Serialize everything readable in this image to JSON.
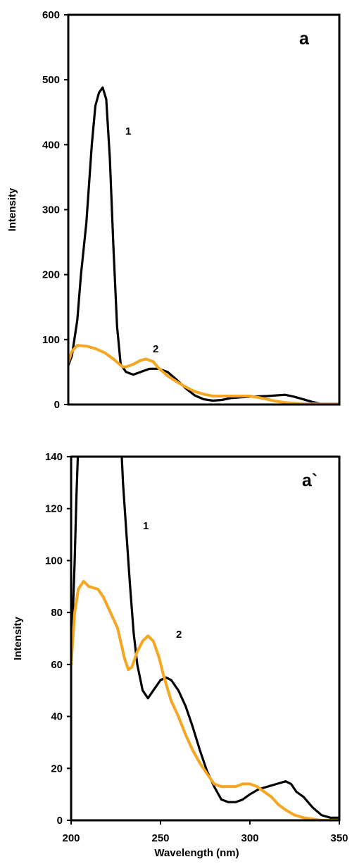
{
  "chart_data": [
    {
      "type": "line",
      "panel_label": "a",
      "ylabel": "Intensity",
      "xlabel": "",
      "xlim": [
        200,
        350
      ],
      "ylim": [
        0,
        600
      ],
      "yticks": [
        "0",
        "100",
        "200",
        "300",
        "400",
        "500",
        "600"
      ],
      "grid": false,
      "series": [
        {
          "name": "1",
          "color": "#000000",
          "points": [
            [
              200,
              60
            ],
            [
              202,
              75
            ],
            [
              205,
              130
            ],
            [
              207,
              200
            ],
            [
              210,
              280
            ],
            [
              213,
              400
            ],
            [
              215,
              460
            ],
            [
              217,
              480
            ],
            [
              219,
              488
            ],
            [
              221,
              470
            ],
            [
              223,
              380
            ],
            [
              225,
              240
            ],
            [
              227,
              120
            ],
            [
              229,
              62
            ],
            [
              232,
              50
            ],
            [
              236,
              46
            ],
            [
              240,
              50
            ],
            [
              245,
              55
            ],
            [
              250,
              55
            ],
            [
              255,
              50
            ],
            [
              260,
              38
            ],
            [
              265,
              25
            ],
            [
              270,
              14
            ],
            [
              275,
              8
            ],
            [
              280,
              6
            ],
            [
              285,
              7
            ],
            [
              290,
              10
            ],
            [
              300,
              12
            ],
            [
              310,
              13
            ],
            [
              320,
              15
            ],
            [
              325,
              12
            ],
            [
              330,
              8
            ],
            [
              335,
              4
            ],
            [
              340,
              1
            ],
            [
              350,
              1
            ]
          ]
        },
        {
          "name": "2",
          "color": "#f5a623",
          "points": [
            [
              200,
              65
            ],
            [
              202,
              82
            ],
            [
              205,
              91
            ],
            [
              210,
              90
            ],
            [
              215,
              86
            ],
            [
              220,
              80
            ],
            [
              225,
              70
            ],
            [
              230,
              58
            ],
            [
              232,
              58
            ],
            [
              236,
              62
            ],
            [
              240,
              68
            ],
            [
              243,
              70
            ],
            [
              247,
              66
            ],
            [
              250,
              56
            ],
            [
              255,
              44
            ],
            [
              260,
              35
            ],
            [
              265,
              27
            ],
            [
              270,
              20
            ],
            [
              275,
              16
            ],
            [
              280,
              13
            ],
            [
              285,
              13
            ],
            [
              290,
              13
            ],
            [
              295,
              13
            ],
            [
              300,
              13
            ],
            [
              305,
              11
            ],
            [
              310,
              8
            ],
            [
              315,
              5
            ],
            [
              320,
              3
            ],
            [
              330,
              1
            ],
            [
              340,
              1
            ],
            [
              350,
              1
            ]
          ]
        }
      ]
    },
    {
      "type": "line",
      "panel_label": "a`",
      "ylabel": "Intensity",
      "xlabel": "Wavelength (nm)",
      "xlim": [
        200,
        350
      ],
      "ylim": [
        0,
        140
      ],
      "xticks": [
        "200",
        "250",
        "300",
        "350"
      ],
      "yticks": [
        "0",
        "20",
        "40",
        "60",
        "80",
        "100",
        "120",
        "140"
      ],
      "grid": false,
      "series": [
        {
          "name": "1",
          "color": "#000000",
          "points": [
            [
              200,
              60
            ],
            [
              201,
              80
            ],
            [
              202,
              100
            ],
            [
              203,
              125
            ],
            [
              204,
              145
            ],
            [
              228,
              145
            ],
            [
              229,
              130
            ],
            [
              231,
              110
            ],
            [
              233,
              90
            ],
            [
              235,
              72
            ],
            [
              237,
              60
            ],
            [
              240,
              50
            ],
            [
              243,
              47
            ],
            [
              246,
              50
            ],
            [
              250,
              54
            ],
            [
              253,
              55
            ],
            [
              256,
              54
            ],
            [
              260,
              50
            ],
            [
              264,
              44
            ],
            [
              268,
              36
            ],
            [
              272,
              27
            ],
            [
              276,
              19
            ],
            [
              280,
              13
            ],
            [
              284,
              8
            ],
            [
              288,
              7
            ],
            [
              292,
              7
            ],
            [
              296,
              8
            ],
            [
              300,
              10
            ],
            [
              305,
              12
            ],
            [
              310,
              13
            ],
            [
              315,
              14
            ],
            [
              320,
              15
            ],
            [
              323,
              14
            ],
            [
              326,
              11
            ],
            [
              330,
              9
            ],
            [
              335,
              5
            ],
            [
              340,
              2
            ],
            [
              345,
              1
            ],
            [
              350,
              1
            ]
          ]
        },
        {
          "name": "2",
          "color": "#f5a623",
          "points": [
            [
              200,
              60
            ],
            [
              202,
              80
            ],
            [
              204,
              89
            ],
            [
              207,
              92
            ],
            [
              210,
              90
            ],
            [
              215,
              89
            ],
            [
              218,
              86
            ],
            [
              222,
              80
            ],
            [
              226,
              74
            ],
            [
              230,
              62
            ],
            [
              232,
              58
            ],
            [
              234,
              59
            ],
            [
              237,
              65
            ],
            [
              240,
              69
            ],
            [
              243,
              71
            ],
            [
              246,
              69
            ],
            [
              249,
              63
            ],
            [
              252,
              55
            ],
            [
              256,
              46
            ],
            [
              260,
              40
            ],
            [
              264,
              33
            ],
            [
              268,
              27
            ],
            [
              272,
              22
            ],
            [
              276,
              18
            ],
            [
              280,
              14
            ],
            [
              284,
              13
            ],
            [
              288,
              13
            ],
            [
              292,
              13
            ],
            [
              296,
              14
            ],
            [
              300,
              14
            ],
            [
              304,
              13
            ],
            [
              308,
              11
            ],
            [
              312,
              9
            ],
            [
              316,
              6
            ],
            [
              320,
              4
            ],
            [
              325,
              2
            ],
            [
              330,
              1
            ],
            [
              340,
              0
            ],
            [
              350,
              0
            ]
          ]
        }
      ]
    }
  ]
}
